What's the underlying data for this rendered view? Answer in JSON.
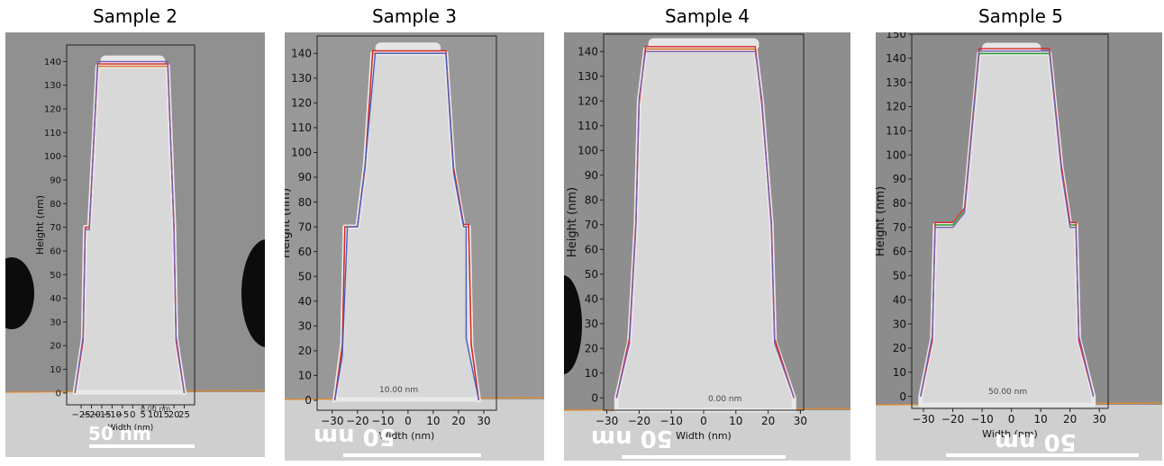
{
  "chart_data": [
    {
      "type": "line",
      "title": "Sample 2",
      "xlabel": "Width (nm)",
      "ylabel": "Height (nm)",
      "xlim": [
        -32,
        30
      ],
      "ylim": [
        -5,
        147
      ],
      "xticks": [
        -25,
        -20,
        -15,
        -10,
        -5,
        0,
        5,
        10,
        15,
        20,
        25
      ],
      "yticks": [
        0,
        10,
        20,
        30,
        40,
        50,
        60,
        70,
        80,
        90,
        100,
        110,
        120,
        130,
        140
      ],
      "scale_bar": "50 nm",
      "faint_label": "0.00 nm",
      "series": [
        {
          "color": "#e07020",
          "points": [
            [
              -28,
              0
            ],
            [
              -24,
              23
            ],
            [
              -23,
              70
            ],
            [
              -21,
              70
            ],
            [
              -17,
              138
            ],
            [
              17,
              138
            ],
            [
              20,
              70
            ],
            [
              21,
              23
            ],
            [
              25,
              0
            ]
          ]
        },
        {
          "color": "#d62728",
          "points": [
            [
              -28,
              0
            ],
            [
              -24,
              22
            ],
            [
              -23,
              70
            ],
            [
              -21,
              70
            ],
            [
              -17,
              139
            ],
            [
              17,
              139
            ],
            [
              20,
              70
            ],
            [
              21,
              22
            ],
            [
              25,
              0
            ]
          ]
        },
        {
          "color": "#7b5fb5",
          "points": [
            [
              -28,
              0
            ],
            [
              -24,
              24
            ],
            [
              -23,
              69
            ],
            [
              -21,
              69
            ],
            [
              -17,
              140
            ],
            [
              17,
              140
            ],
            [
              20,
              69
            ],
            [
              21,
              24
            ],
            [
              25,
              0
            ]
          ]
        }
      ]
    },
    {
      "type": "line",
      "title": "Sample 3",
      "xlabel": "Width (nm)",
      "ylabel": "Height (nm)",
      "xlim": [
        -36,
        35
      ],
      "ylim": [
        -4,
        147
      ],
      "xticks": [
        -30,
        -20,
        -10,
        0,
        10,
        20,
        30
      ],
      "yticks": [
        0,
        10,
        20,
        30,
        40,
        50,
        60,
        70,
        80,
        90,
        100,
        110,
        120,
        130,
        140
      ],
      "scale_bar": "50 nm",
      "faint_label": "10.00 nm",
      "series": [
        {
          "color": "#e07020",
          "points": [
            [
              -29,
              0
            ],
            [
              -26,
              23
            ],
            [
              -25,
              70
            ],
            [
              -20,
              70
            ],
            [
              -17,
              95
            ],
            [
              -14,
              140
            ],
            [
              15,
              140
            ],
            [
              18,
              93
            ],
            [
              22,
              70
            ],
            [
              24,
              70
            ],
            [
              25,
              22
            ],
            [
              28,
              0
            ]
          ]
        },
        {
          "color": "#d62728",
          "points": [
            [
              -29,
              0
            ],
            [
              -26,
              22
            ],
            [
              -25,
              70
            ],
            [
              -20,
              70
            ],
            [
              -17,
              94
            ],
            [
              -14,
              141
            ],
            [
              15,
              141
            ],
            [
              18,
              94
            ],
            [
              22,
              71
            ],
            [
              24,
              71
            ],
            [
              25,
              23
            ],
            [
              28,
              0
            ]
          ]
        },
        {
          "color": "#4a5fc4",
          "points": [
            [
              -29,
              0
            ],
            [
              -26,
              18
            ],
            [
              -24,
              70
            ],
            [
              -20,
              70
            ],
            [
              -17,
              95
            ],
            [
              -13,
              140
            ],
            [
              15,
              140
            ],
            [
              18,
              92
            ],
            [
              22,
              70
            ],
            [
              23,
              70
            ],
            [
              23,
              25
            ],
            [
              28,
              0
            ]
          ]
        }
      ]
    },
    {
      "type": "line",
      "title": "Sample 4",
      "xlabel": "Width (nm)",
      "ylabel": "Height (nm)",
      "xlim": [
        -31,
        31
      ],
      "ylim": [
        -5,
        147
      ],
      "xticks": [
        -30,
        -20,
        -10,
        0,
        10,
        20,
        30
      ],
      "yticks": [
        0,
        10,
        20,
        30,
        40,
        50,
        60,
        70,
        80,
        90,
        100,
        110,
        120,
        130,
        140
      ],
      "scale_bar": "50 nm",
      "faint_label": "0.00 nm",
      "series": [
        {
          "color": "#e07020",
          "points": [
            [
              -27,
              0
            ],
            [
              -23,
              23
            ],
            [
              -21,
              70
            ],
            [
              -20,
              120
            ],
            [
              -18,
              141
            ],
            [
              16,
              141
            ],
            [
              18,
              120
            ],
            [
              21,
              70
            ],
            [
              22,
              23
            ],
            [
              28,
              0
            ]
          ]
        },
        {
          "color": "#d62728",
          "points": [
            [
              -27,
              0
            ],
            [
              -23,
              24
            ],
            [
              -21,
              71
            ],
            [
              -20,
              119
            ],
            [
              -18,
              142
            ],
            [
              16,
              142
            ],
            [
              18,
              119
            ],
            [
              21,
              71
            ],
            [
              22,
              24
            ],
            [
              28,
              0
            ]
          ]
        },
        {
          "color": "#7b5fb5",
          "points": [
            [
              -27,
              0
            ],
            [
              -23,
              22
            ],
            [
              -21,
              69
            ],
            [
              -20,
              121
            ],
            [
              -18,
              140
            ],
            [
              16,
              140
            ],
            [
              18,
              121
            ],
            [
              21,
              69
            ],
            [
              22,
              22
            ],
            [
              28,
              0
            ]
          ]
        }
      ]
    },
    {
      "type": "line",
      "title": "Sample 5",
      "xlabel": "Width (nm)",
      "ylabel": "Height (nm)",
      "xlim": [
        -34,
        33
      ],
      "ylim": [
        -5,
        150
      ],
      "xticks": [
        -30,
        -20,
        -10,
        0,
        10,
        20,
        30
      ],
      "yticks": [
        0,
        10,
        20,
        30,
        40,
        50,
        60,
        70,
        80,
        90,
        100,
        110,
        120,
        130,
        140,
        150
      ],
      "scale_bar": "50 nm",
      "faint_label": "50.00 nm",
      "series": [
        {
          "color": "#2ca02c",
          "points": [
            [
              -31,
              0
            ],
            [
              -27,
              24
            ],
            [
              -26,
              71
            ],
            [
              -20,
              71
            ],
            [
              -16,
              77
            ],
            [
              -11,
              142
            ],
            [
              13,
              142
            ],
            [
              17,
              95
            ],
            [
              20,
              71
            ],
            [
              22,
              71
            ],
            [
              23,
              24
            ],
            [
              28,
              0
            ]
          ]
        },
        {
          "color": "#d62728",
          "points": [
            [
              -31,
              0
            ],
            [
              -27,
              23
            ],
            [
              -26,
              72
            ],
            [
              -20,
              72
            ],
            [
              -16,
              78
            ],
            [
              -11,
              144
            ],
            [
              13,
              144
            ],
            [
              17,
              96
            ],
            [
              20,
              72
            ],
            [
              22,
              72
            ],
            [
              23,
              23
            ],
            [
              28,
              0
            ]
          ]
        },
        {
          "color": "#7b5fb5",
          "points": [
            [
              -31,
              0
            ],
            [
              -27,
              25
            ],
            [
              -26,
              70
            ],
            [
              -20,
              70
            ],
            [
              -16,
              76
            ],
            [
              -11,
              143
            ],
            [
              13,
              143
            ],
            [
              17,
              94
            ],
            [
              20,
              70
            ],
            [
              22,
              70
            ],
            [
              23,
              25
            ],
            [
              28,
              0
            ]
          ]
        }
      ]
    }
  ]
}
